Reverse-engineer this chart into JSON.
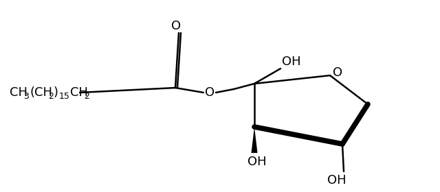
{
  "bg": "#ffffff",
  "lc": "#000000",
  "lw": 1.8,
  "blw": 5.5,
  "fs": 13,
  "fss": 9,
  "figsize": [
    6.4,
    2.8
  ],
  "dpi": 100,
  "chain": [
    [
      "CH",
      false
    ],
    [
      "3",
      true
    ],
    [
      "(CH",
      false
    ],
    [
      "2",
      true
    ],
    [
      ")",
      false
    ],
    [
      "15",
      true
    ],
    [
      "CH",
      false
    ],
    [
      "2",
      true
    ]
  ]
}
